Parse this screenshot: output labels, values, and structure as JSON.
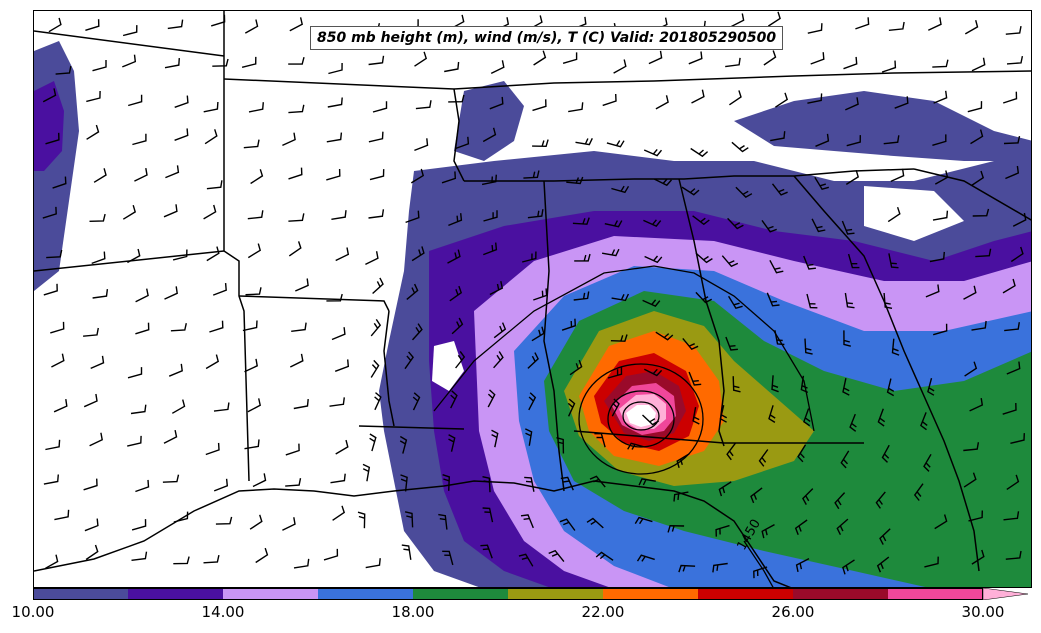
{
  "title": "850 mb height (m), wind (m/s), T (C) Valid: 201805290500",
  "contour_label": "1450",
  "colorbar": {
    "colors": [
      "#4b4b9a",
      "#4a10a0",
      "#c995f5",
      "#3a72dc",
      "#1e8a3c",
      "#9a9a12",
      "#ff6a00",
      "#cc0000",
      "#9a0a2a",
      "#f0479a",
      "#ffb0d8"
    ],
    "tick_labels": [
      "10.00",
      "14.00",
      "18.00",
      "22.00",
      "26.00",
      "30.00"
    ]
  },
  "legend_values": {
    "min": 10,
    "max": 31,
    "step": 2,
    "extend": "max"
  },
  "layers": [
    "wind-speed-fill",
    "state-borders",
    "coastline",
    "height-contours",
    "wind-barbs"
  ]
}
